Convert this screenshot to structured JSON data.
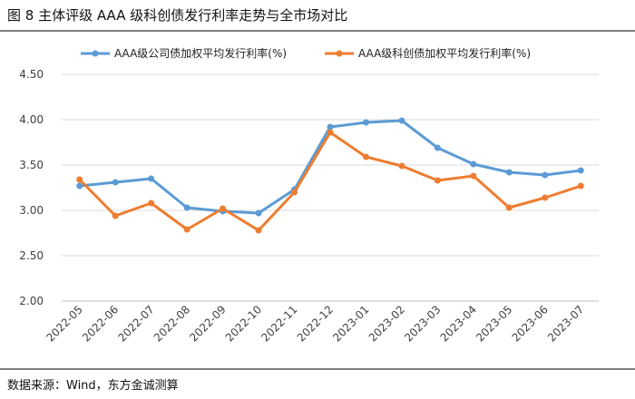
{
  "header": {
    "title": "图 8   主体评级 AAA 级科创债发行利率走势与全市场对比"
  },
  "footer": {
    "source": "数据来源：Wind，东方金诚测算"
  },
  "colors": {
    "series_1": "#5B9BD5",
    "series_2": "#ED7D31",
    "grid": "#d9d9d9",
    "axis_text": "#404040"
  },
  "chart_data": {
    "type": "line",
    "title": "",
    "xlabel": "",
    "ylabel": "",
    "ylim": [
      2.0,
      4.5
    ],
    "yticks": [
      "2.00",
      "2.50",
      "3.00",
      "3.50",
      "4.00",
      "4.50"
    ],
    "ytick_values": [
      2.0,
      2.5,
      3.0,
      3.5,
      4.0,
      4.5
    ],
    "grid": true,
    "legend_position": "top",
    "categories": [
      "2022-05",
      "2022-06",
      "2022-07",
      "2022-08",
      "2022-09",
      "2022-10",
      "2022-11",
      "2022-12",
      "2023-01",
      "2023-02",
      "2023-03",
      "2023-04",
      "2023-05",
      "2023-06",
      "2023-07"
    ],
    "series": [
      {
        "name": "AAA级公司债加权平均发行利率(%)",
        "values": [
          3.27,
          3.31,
          3.35,
          3.03,
          2.99,
          2.97,
          3.23,
          3.92,
          3.97,
          3.99,
          3.69,
          3.51,
          3.42,
          3.39,
          3.44
        ]
      },
      {
        "name": "AAA级科创债加权平均发行利率(%)",
        "values": [
          3.34,
          2.94,
          3.08,
          2.79,
          3.02,
          2.78,
          3.2,
          3.86,
          3.59,
          3.49,
          3.33,
          3.38,
          3.03,
          3.14,
          3.27
        ]
      }
    ]
  }
}
